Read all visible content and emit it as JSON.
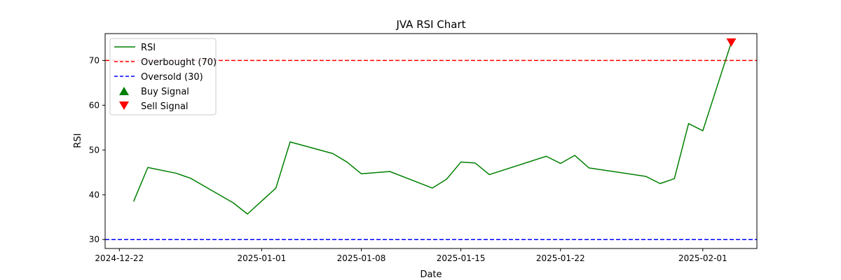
{
  "chart_data": {
    "type": "line",
    "title": "JVA RSI Chart",
    "xlabel": "Date",
    "ylabel": "RSI",
    "ylim": [
      28,
      76
    ],
    "yticks": [
      30,
      40,
      50,
      60,
      70
    ],
    "xlim_days": [
      -1.0,
      44.8
    ],
    "xticks": [
      {
        "day": 0,
        "label": "2024-12-22"
      },
      {
        "day": 10,
        "label": "2025-01-01"
      },
      {
        "day": 17,
        "label": "2025-01-08"
      },
      {
        "day": 24,
        "label": "2025-01-15"
      },
      {
        "day": 31,
        "label": "2025-01-22"
      },
      {
        "day": 41,
        "label": "2025-02-01"
      }
    ],
    "series": [
      {
        "name": "RSI",
        "color": "#008000",
        "points": [
          {
            "day": 1,
            "value": 38.5
          },
          {
            "day": 2,
            "value": 46.1
          },
          {
            "day": 4,
            "value": 44.8
          },
          {
            "day": 5,
            "value": 43.7
          },
          {
            "day": 8,
            "value": 38.2
          },
          {
            "day": 9,
            "value": 35.7
          },
          {
            "day": 11,
            "value": 41.5
          },
          {
            "day": 12,
            "value": 51.8
          },
          {
            "day": 15,
            "value": 49.2
          },
          {
            "day": 16,
            "value": 47.3
          },
          {
            "day": 17,
            "value": 44.7
          },
          {
            "day": 19,
            "value": 45.2
          },
          {
            "day": 22,
            "value": 41.5
          },
          {
            "day": 23,
            "value": 43.5
          },
          {
            "day": 24,
            "value": 47.3
          },
          {
            "day": 25,
            "value": 47.1
          },
          {
            "day": 26,
            "value": 44.5
          },
          {
            "day": 30,
            "value": 48.6
          },
          {
            "day": 31,
            "value": 47.0
          },
          {
            "day": 32,
            "value": 48.8
          },
          {
            "day": 33,
            "value": 46.0
          },
          {
            "day": 37,
            "value": 44.1
          },
          {
            "day": 38,
            "value": 42.5
          },
          {
            "day": 39,
            "value": 43.6
          },
          {
            "day": 40,
            "value": 55.9
          },
          {
            "day": 41,
            "value": 54.3
          },
          {
            "day": 43,
            "value": 74.0
          }
        ]
      }
    ],
    "reference_lines": [
      {
        "name": "Overbought (70)",
        "value": 70,
        "color": "#ff0000"
      },
      {
        "name": "Oversold (30)",
        "value": 30,
        "color": "#0000ff"
      }
    ],
    "signals": {
      "buy": [],
      "sell": [
        {
          "day": 43,
          "value": 74.0
        }
      ]
    },
    "legend": {
      "position": "top-left",
      "items": [
        {
          "label": "RSI",
          "kind": "line",
          "color": "#008000"
        },
        {
          "label": "Overbought (70)",
          "kind": "dashed",
          "color": "#ff0000"
        },
        {
          "label": "Oversold (30)",
          "kind": "dashed",
          "color": "#0000ff"
        },
        {
          "label": "Buy Signal",
          "kind": "triangle-up",
          "color": "#008000"
        },
        {
          "label": "Sell Signal",
          "kind": "triangle-down",
          "color": "#ff0000"
        }
      ]
    }
  }
}
